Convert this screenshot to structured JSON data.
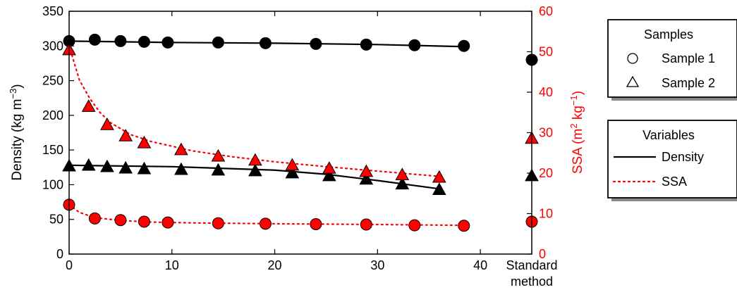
{
  "chart_data": {
    "type": "scatter",
    "x_axis": {
      "range": [
        0,
        45
      ],
      "ticks": [
        0,
        10,
        20,
        30,
        40
      ],
      "extra_label": [
        "Standard",
        "method"
      ],
      "standard_x": 45
    },
    "y_left": {
      "label": "Density (kg m",
      "label_sup": "−3",
      "label_end": ")",
      "range": [
        0,
        350
      ],
      "ticks": [
        0,
        50,
        100,
        150,
        200,
        250,
        300,
        350
      ]
    },
    "y_right": {
      "label": "SSA (m",
      "label_sup1": "2",
      "label_mid": " kg",
      "label_sup2": "−1",
      "label_end": ")",
      "range": [
        0,
        60
      ],
      "ticks": [
        0,
        10,
        20,
        30,
        40,
        50,
        60
      ],
      "color": "#ff0000"
    },
    "series": [
      {
        "name": "Sample 1",
        "variable": "Density",
        "axis": "left",
        "marker": "circle",
        "color": "#000000",
        "x": [
          0,
          2.5,
          5,
          7.3,
          9.6,
          14.5,
          19.1,
          24,
          28.9,
          33.6,
          38.4
        ],
        "y": [
          307,
          309,
          307,
          306,
          305,
          305,
          304,
          303,
          302,
          301,
          300
        ],
        "fit_x": [
          0,
          10,
          20,
          30,
          38.4
        ],
        "fit_y": [
          307,
          305,
          304,
          302,
          299
        ],
        "standard": 280
      },
      {
        "name": "Sample 1",
        "variable": "SSA",
        "axis": "right",
        "marker": "circle",
        "color": "#ff0000",
        "x": [
          0,
          2.5,
          5,
          7.3,
          9.6,
          14.5,
          19.1,
          24,
          28.9,
          33.6,
          38.4
        ],
        "y": [
          12.2,
          8.8,
          8.4,
          8.0,
          7.8,
          7.6,
          7.5,
          7.4,
          7.3,
          7.1,
          7.0
        ],
        "fit_x": [
          0,
          1,
          2.5,
          5,
          8,
          12,
          20,
          30,
          38.4
        ],
        "fit_y": [
          12.2,
          10.3,
          9.0,
          8.3,
          7.9,
          7.7,
          7.5,
          7.3,
          7.1
        ],
        "standard": 8.0
      },
      {
        "name": "Sample 2",
        "variable": "Density",
        "axis": "left",
        "marker": "triangle",
        "color": "#000000",
        "x": [
          0,
          1.9,
          3.7,
          5.5,
          7.3,
          10.9,
          14.5,
          18.1,
          21.7,
          25.3,
          28.9,
          32.4,
          36.0
        ],
        "y": [
          127,
          128,
          126,
          124,
          123,
          122,
          121,
          120,
          117,
          113,
          108,
          101,
          93
        ],
        "fit_x": [
          0,
          10,
          20,
          25,
          30,
          36
        ],
        "fit_y": [
          128,
          126,
          121,
          115,
          106,
          94
        ],
        "standard": 113
      },
      {
        "name": "Sample 2",
        "variable": "SSA",
        "axis": "right",
        "marker": "triangle",
        "color": "#ff0000",
        "x": [
          0,
          1.9,
          3.7,
          5.5,
          7.3,
          10.9,
          14.5,
          18.1,
          21.7,
          25.3,
          28.9,
          32.4,
          36.0
        ],
        "y": [
          50.5,
          36.5,
          32,
          29.2,
          27.5,
          25.8,
          24.2,
          23.2,
          22,
          21.2,
          20.4,
          19.6,
          19.0
        ],
        "fit_x": [
          0,
          1,
          2,
          3,
          4,
          6,
          8,
          12,
          16,
          20,
          25,
          30,
          36
        ],
        "fit_y": [
          51.5,
          43,
          38.5,
          35,
          32.5,
          29.5,
          27.8,
          25.5,
          24,
          22.8,
          21.6,
          20.5,
          19.2
        ],
        "standard": 28.6
      }
    ],
    "legend": {
      "position": "right",
      "samples": {
        "title": "Samples",
        "items": [
          {
            "label": "Sample 1",
            "marker": "circle"
          },
          {
            "label": "Sample 2",
            "marker": "triangle"
          }
        ]
      },
      "variables": {
        "title": "Variables",
        "items": [
          {
            "label": "Density",
            "line": "solid",
            "color": "#000000"
          },
          {
            "label": "SSA",
            "line": "dotted",
            "color": "#ff0000"
          }
        ]
      }
    }
  }
}
